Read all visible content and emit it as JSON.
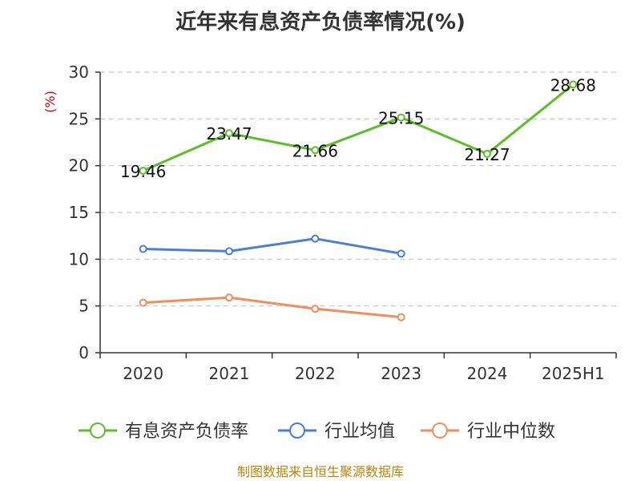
{
  "chart_data": {
    "type": "line",
    "title": "近年来有息资产负债率情况(%)",
    "ylabel": "(%)",
    "categories": [
      "2020",
      "2021",
      "2022",
      "2023",
      "2024",
      "2025H1"
    ],
    "yticks": [
      "0",
      "5",
      "10",
      "15",
      "20",
      "25",
      "30"
    ],
    "ylim": [
      0,
      30
    ],
    "grid": true,
    "legend_position": "bottom",
    "series": [
      {
        "name": "有息资产负债率",
        "color": "#5cbf2a",
        "values": [
          19.46,
          23.47,
          21.66,
          25.15,
          21.27,
          28.68
        ],
        "labels": [
          "19.46",
          "23.47",
          "21.66",
          "25.15",
          "21.27",
          "28.68"
        ]
      },
      {
        "name": "行业均值",
        "color": "#4a7fd6",
        "values": [
          11.1,
          10.85,
          12.2,
          10.6,
          null,
          null
        ]
      },
      {
        "name": "行业中位数",
        "color": "#f28e5c",
        "values": [
          5.35,
          5.9,
          4.7,
          3.8,
          null,
          null
        ]
      }
    ]
  },
  "footer": {
    "source": "制图数据来自恒生聚源数据库"
  }
}
